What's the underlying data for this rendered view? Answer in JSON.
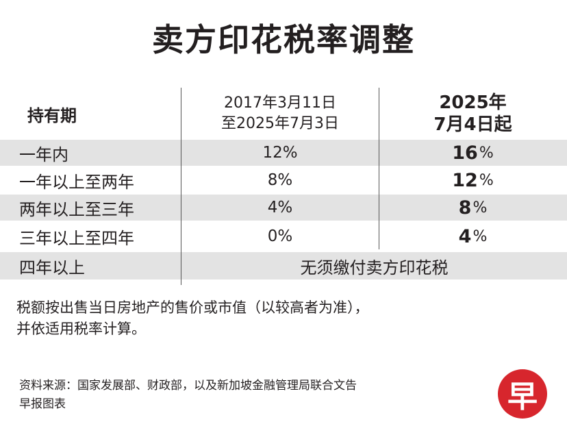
{
  "title": "卖方印花税率调整",
  "table": {
    "headers": {
      "holding_period": "持有期",
      "old_rate_line1": "2017年3月11日",
      "old_rate_line2": "至2025年7月3日",
      "new_rate_line1": "2025年",
      "new_rate_line2": "7月4日起"
    },
    "rows": [
      {
        "period": "一年内",
        "old_rate": "12%",
        "new_rate_num": "16",
        "new_rate_unit": "%"
      },
      {
        "period": "一年以上至两年",
        "old_rate": "8%",
        "new_rate_num": "12",
        "new_rate_unit": "%"
      },
      {
        "period": "两年以上至三年",
        "old_rate": "4%",
        "new_rate_num": "8",
        "new_rate_unit": "%"
      },
      {
        "period": "三年以上至四年",
        "old_rate": "0%",
        "new_rate_num": "4",
        "new_rate_unit": "%"
      }
    ],
    "last_row": {
      "period": "四年以上",
      "merged": "无须缴付卖方印花税"
    }
  },
  "note": {
    "line1": "税额按出售当日房地产的售价或市值（以较高者为准），",
    "line2": "并依适用税率计算。"
  },
  "source": {
    "line1": "资料来源：国家发展部、财政部，以及新加坡金融管理局联合文告",
    "line2": "早报图表"
  },
  "logo": {
    "char": "早",
    "color": "#d7262d"
  }
}
